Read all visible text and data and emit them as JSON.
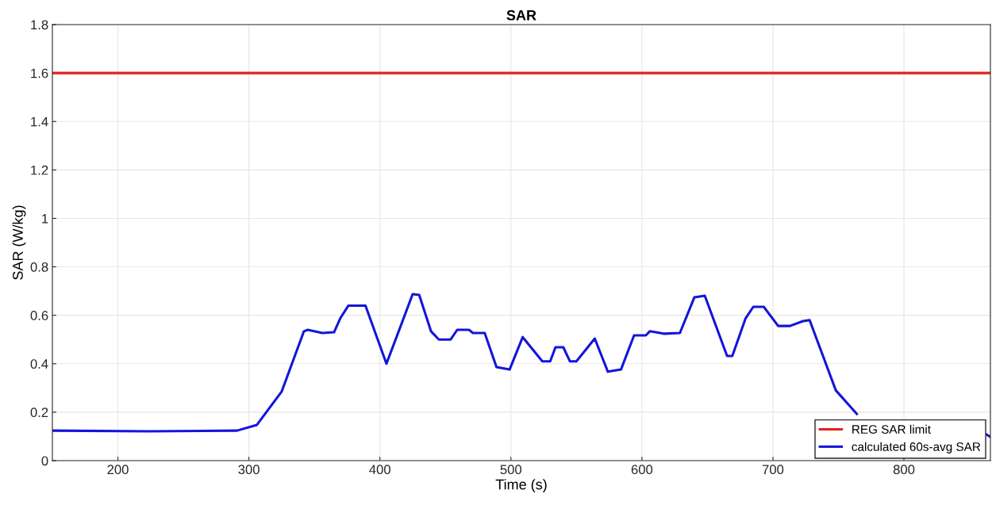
{
  "chart_data": {
    "type": "line",
    "title": "SAR",
    "xlabel": "Time (s)",
    "ylabel": "SAR (W/kg)",
    "xlim": [
      150,
      866
    ],
    "xticks": [
      200,
      300,
      400,
      500,
      600,
      700,
      800
    ],
    "ylim": [
      0,
      1.8
    ],
    "yticks": [
      0,
      0.2,
      0.4,
      0.6,
      0.8,
      1,
      1.2,
      1.4,
      1.6,
      1.8
    ],
    "grid": true,
    "legend": "bottom right",
    "marker": "none",
    "line_style": "solid",
    "series": [
      {
        "name": "REG SAR limit",
        "color": "#e3211c",
        "x": [
          150,
          866
        ],
        "values": [
          1.6,
          1.6
        ]
      },
      {
        "name": "calculated 60s-avg SAR",
        "color": "#1414dc",
        "x": [
          150,
          224,
          291,
          306,
          325,
          342,
          345,
          356,
          365,
          370,
          376,
          389,
          405,
          425,
          430,
          439,
          445,
          454,
          459,
          468,
          471,
          480,
          489,
          499,
          509,
          524,
          530,
          534,
          540,
          545,
          550,
          564,
          574,
          584,
          594,
          603,
          606,
          614,
          617,
          629,
          640,
          648,
          665,
          669,
          679,
          685,
          693,
          704,
          713,
          723,
          728,
          748,
          764,
          800,
          863,
          866
        ],
        "values": [
          0.124,
          0.121,
          0.124,
          0.147,
          0.285,
          0.534,
          0.54,
          0.527,
          0.53,
          0.59,
          0.64,
          0.64,
          0.4,
          0.687,
          0.684,
          0.534,
          0.5,
          0.5,
          0.54,
          0.54,
          0.527,
          0.527,
          0.386,
          0.376,
          0.51,
          0.41,
          0.41,
          0.468,
          0.468,
          0.41,
          0.41,
          0.504,
          0.367,
          0.376,
          0.517,
          0.517,
          0.534,
          0.527,
          0.524,
          0.527,
          0.674,
          0.681,
          0.432,
          0.432,
          0.586,
          0.635,
          0.635,
          0.556,
          0.556,
          0.576,
          0.58,
          0.29,
          0.193,
          null,
          0.108,
          0.098
        ]
      }
    ]
  }
}
